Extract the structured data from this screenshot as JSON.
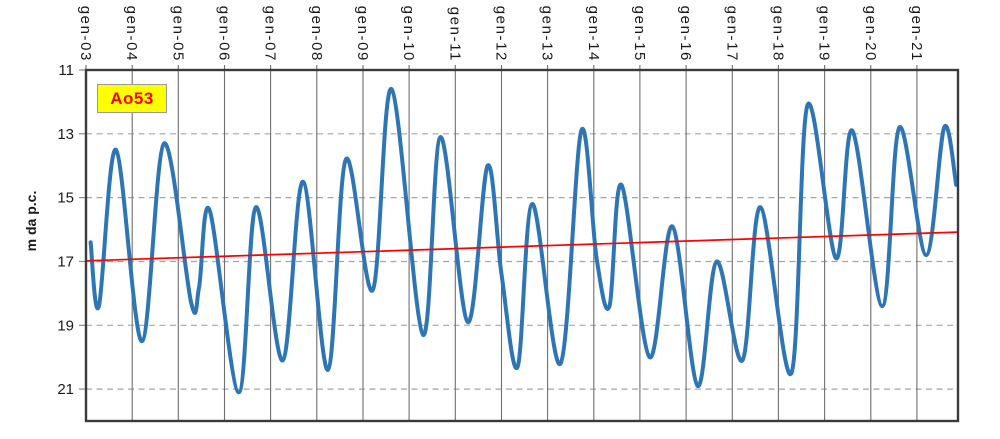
{
  "chart_data": {
    "type": "line",
    "title": "Ao53",
    "ylabel": "m da p.c.",
    "x_axis": {
      "tick_labels": [
        "gen-03",
        "gen-04",
        "gen-05",
        "gen-06",
        "gen-07",
        "gen-08",
        "gen-09",
        "gen-10",
        "gen-11",
        "gen-12",
        "gen-13",
        "gen-14",
        "gen-15",
        "gen-16",
        "gen-17",
        "gen-18",
        "gen-19",
        "gen-20",
        "gen-21"
      ],
      "tick_years": [
        2003,
        2004,
        2005,
        2006,
        2007,
        2008,
        2009,
        2010,
        2011,
        2012,
        2013,
        2014,
        2015,
        2016,
        2017,
        2018,
        2019,
        2020,
        2021
      ],
      "range": [
        2003.0,
        2021.89
      ]
    },
    "y_axis": {
      "tick_values": [
        11,
        13,
        15,
        17,
        19,
        21
      ],
      "range": [
        11,
        22
      ],
      "orientation": "depth increases downward",
      "dashed_grid_values": [
        13,
        15,
        17,
        19,
        21
      ]
    },
    "grid": {
      "vertical": "solid",
      "horizontal": "dashed",
      "legend": "none"
    },
    "series": [
      {
        "name": "groundwater-depth",
        "color": "#2E75B6",
        "style": "smooth",
        "line_width": 4,
        "points": [
          [
            2003.1,
            16.4
          ],
          [
            2003.28,
            18.4
          ],
          [
            2003.65,
            13.5
          ],
          [
            2004.21,
            19.5
          ],
          [
            2004.69,
            13.3
          ],
          [
            2005.28,
            18.3
          ],
          [
            2005.45,
            17.8
          ],
          [
            2005.68,
            15.4
          ],
          [
            2006.31,
            21.1
          ],
          [
            2006.68,
            15.3
          ],
          [
            2007.26,
            20.1
          ],
          [
            2007.7,
            14.5
          ],
          [
            2008.24,
            20.4
          ],
          [
            2008.63,
            13.8
          ],
          [
            2009.21,
            17.9
          ],
          [
            2009.62,
            11.6
          ],
          [
            2010.3,
            19.3
          ],
          [
            2010.68,
            13.1
          ],
          [
            2011.27,
            18.9
          ],
          [
            2011.7,
            14.0
          ],
          [
            2012.0,
            17.4
          ],
          [
            2012.35,
            20.3
          ],
          [
            2012.67,
            15.2
          ],
          [
            2013.28,
            20.2
          ],
          [
            2013.73,
            12.9
          ],
          [
            2014.06,
            16.9
          ],
          [
            2014.34,
            18.4
          ],
          [
            2014.6,
            14.6
          ],
          [
            2015.21,
            20.0
          ],
          [
            2015.7,
            15.9
          ],
          [
            2016.25,
            20.9
          ],
          [
            2016.66,
            17.0
          ],
          [
            2017.22,
            20.1
          ],
          [
            2017.61,
            15.3
          ],
          [
            2018.28,
            20.5
          ],
          [
            2018.63,
            12.1
          ],
          [
            2019.25,
            16.9
          ],
          [
            2019.6,
            12.9
          ],
          [
            2020.25,
            18.4
          ],
          [
            2020.62,
            12.8
          ],
          [
            2021.2,
            16.8
          ],
          [
            2021.59,
            12.8
          ],
          [
            2021.85,
            14.6
          ]
        ]
      },
      {
        "name": "linear-trend",
        "color": "#FF0000",
        "style": "straight",
        "line_width": 1.7,
        "points": [
          [
            2003.0,
            16.98
          ],
          [
            2021.89,
            16.08
          ]
        ]
      }
    ],
    "colors": {
      "vertical_grid": "#6F6F6F",
      "horizontal_grid": "#A6A6A6",
      "frame": "#3B3B3B",
      "tick_text": "#1A1A1A",
      "label_box_bg": "#FFFF00",
      "label_box_text": "#FF0000"
    }
  }
}
